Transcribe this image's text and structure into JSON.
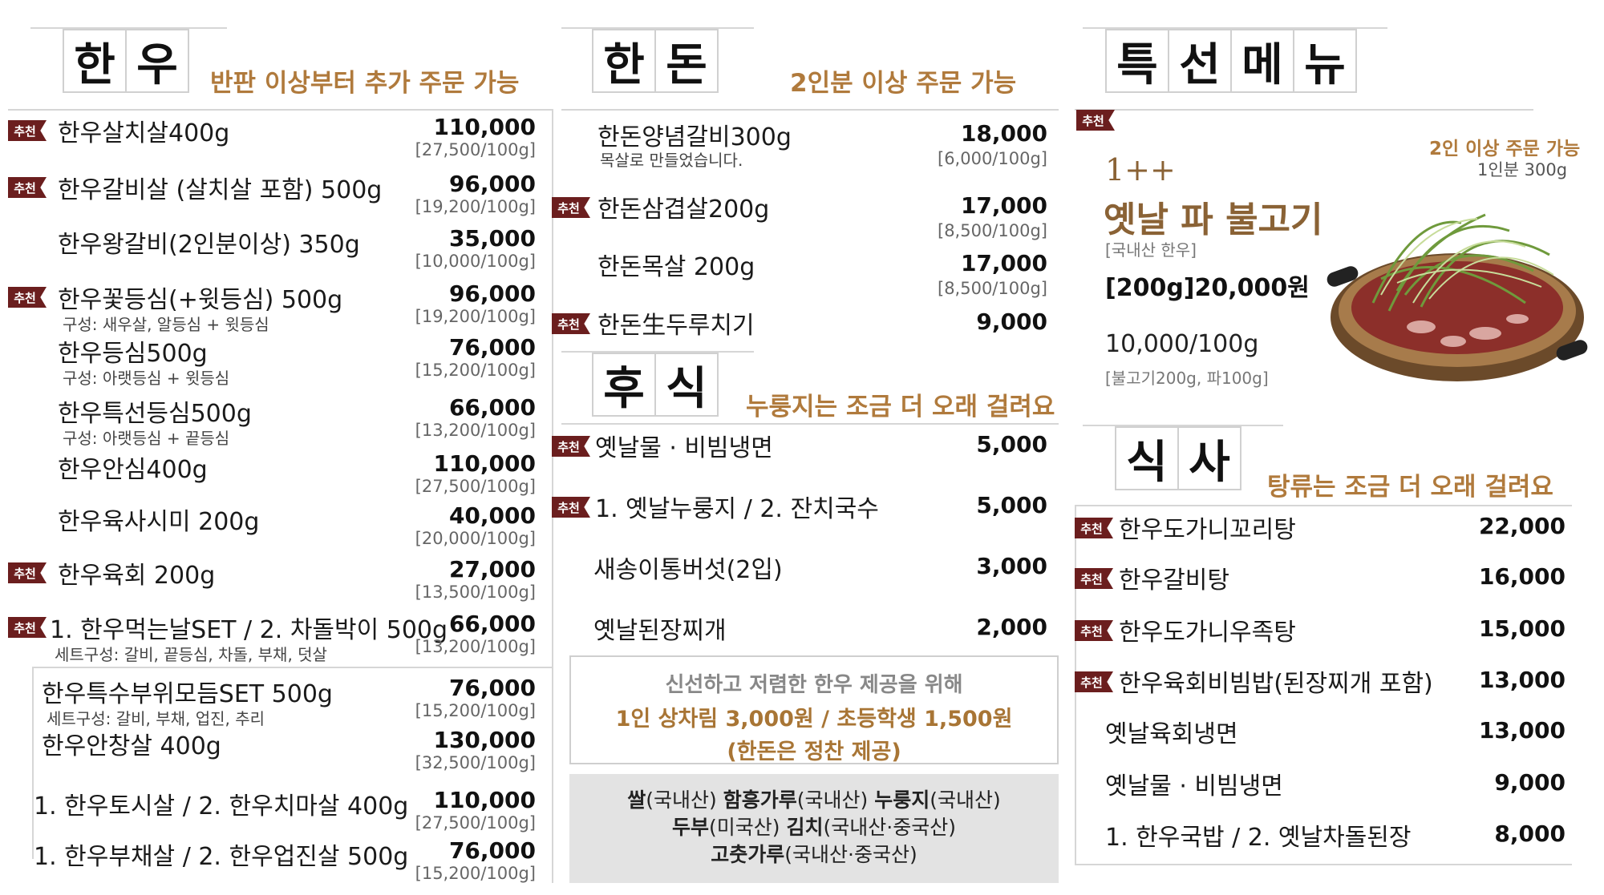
{
  "colors": {
    "accent": "#b07a3c",
    "badge": "#6b1e1e",
    "origin_bg": "#e3e3e3"
  },
  "badge_label": "추천",
  "hanwoo": {
    "title_chars": [
      "한",
      "우"
    ],
    "note": "반판 이상부터 추가 주문 가능",
    "items": [
      {
        "badge": true,
        "name": "한우살치살400g",
        "sub": "",
        "price": "110,000",
        "unit": "[27,500/100g]"
      },
      {
        "badge": true,
        "name": "한우갈비살 (살치살 포함) 500g",
        "sub": "",
        "price": "96,000",
        "unit": "[19,200/100g]"
      },
      {
        "badge": false,
        "name": "한우왕갈비(2인분이상) 350g",
        "sub": "",
        "price": "35,000",
        "unit": "[10,000/100g]"
      },
      {
        "badge": true,
        "name": "한우꽃등심(+윗등심) 500g",
        "sub": "구성: 새우살, 알등심 + 윗등심",
        "price": "96,000",
        "unit": "[19,200/100g]"
      },
      {
        "badge": false,
        "name": "한우등심500g",
        "sub": "구성: 아랫등심 + 윗등심",
        "price": "76,000",
        "unit": "[15,200/100g]"
      },
      {
        "badge": false,
        "name": "한우특선등심500g",
        "sub": "구성: 아랫등심 + 끝등심",
        "price": "66,000",
        "unit": "[13,200/100g]"
      },
      {
        "badge": false,
        "name": "한우안심400g",
        "sub": "",
        "price": "110,000",
        "unit": "[27,500/100g]"
      },
      {
        "badge": false,
        "name": "한우육사시미 200g",
        "sub": "",
        "price": "40,000",
        "unit": "[20,000/100g]"
      },
      {
        "badge": true,
        "name": "한우육회 200g",
        "sub": "",
        "price": "27,000",
        "unit": "[13,500/100g]"
      },
      {
        "badge": true,
        "name": "1. 한우먹는날SET / 2. 차돌박이 500g",
        "sub": "세트구성: 갈비, 끝등심, 차돌, 부채, 덧살",
        "price": "66,000",
        "unit": "[13,200/100g]"
      },
      {
        "badge": false,
        "name": "한우특수부위모듬SET 500g",
        "sub": "세트구성: 갈비, 부채, 업진, 추리",
        "price": "76,000",
        "unit": "[15,200/100g]"
      },
      {
        "badge": false,
        "name": "한우안창살 400g",
        "sub": "",
        "price": "130,000",
        "unit": "[32,500/100g]"
      },
      {
        "badge": false,
        "name": "1. 한우토시살 / 2. 한우치마살 400g",
        "sub": "",
        "price": "110,000",
        "unit": "[27,500/100g]"
      },
      {
        "badge": false,
        "name": "1. 한우부채살 / 2. 한우업진살 500g",
        "sub": "",
        "price": "76,000",
        "unit": "[15,200/100g]"
      }
    ]
  },
  "handon": {
    "title_chars": [
      "한",
      "돈"
    ],
    "note": "2인분 이상 주문 가능",
    "items": [
      {
        "badge": false,
        "name": "한돈양념갈비300g",
        "sub": "목살로 만들었습니다.",
        "price": "18,000",
        "unit": "[6,000/100g]"
      },
      {
        "badge": true,
        "name": "한돈삼겹살200g",
        "sub": "",
        "price": "17,000",
        "unit": "[8,500/100g]"
      },
      {
        "badge": false,
        "name": "한돈목살 200g",
        "sub": "",
        "price": "17,000",
        "unit": "[8,500/100g]"
      },
      {
        "badge": true,
        "name": "한돈生두루치기",
        "sub": "",
        "price": "9,000",
        "unit": ""
      }
    ]
  },
  "husik": {
    "title_chars": [
      "후",
      "식"
    ],
    "note": "누룽지는 조금 더 오래 걸려요",
    "items": [
      {
        "badge": true,
        "name": "옛날물 · 비빔냉면",
        "price": "5,000"
      },
      {
        "badge": true,
        "name": "1. 옛날누룽지 / 2. 잔치국수",
        "price": "5,000"
      },
      {
        "badge": false,
        "name": "새송이통버섯(2입)",
        "price": "3,000"
      },
      {
        "badge": false,
        "name": "옛날된장찌개",
        "price": "2,000"
      }
    ]
  },
  "notice": {
    "line1": "신선하고 저렴한 한우 제공을 위해",
    "line2": "1인 상차림 3,000원 / 초등학생 1,500원",
    "line3": "(한돈은 정찬 제공)"
  },
  "origin": {
    "row1": [
      [
        "쌀",
        "(국내산) "
      ],
      [
        "함흥가루",
        "(국내산) "
      ],
      [
        "누룽지",
        "(국내산)"
      ]
    ],
    "row2": [
      [
        "두부",
        "(미국산) "
      ],
      [
        "김치",
        "(국내산·중국산)"
      ]
    ],
    "row3": [
      [
        "고춧가루",
        "(국내산·중국산)"
      ]
    ]
  },
  "special": {
    "title_chars": [
      "특",
      "선",
      "메",
      "뉴"
    ],
    "min_order": "2인 이상 주문 가능",
    "per_person": "1인분 300g",
    "grade": "1++",
    "name": "옛날 파 불고기",
    "origin": "[국내산 한우]",
    "price": "[200g]20,000원",
    "unit_price": "10,000/100g",
    "composition": "[불고기200g, 파100g]"
  },
  "siksa": {
    "title_chars": [
      "식",
      "사"
    ],
    "note": "탕류는 조금 더 오래 걸려요",
    "items": [
      {
        "badge": true,
        "name": "한우도가니꼬리탕",
        "price": "22,000"
      },
      {
        "badge": true,
        "name": "한우갈비탕",
        "price": "16,000"
      },
      {
        "badge": true,
        "name": "한우도가니우족탕",
        "price": "15,000"
      },
      {
        "badge": true,
        "name": "한우육회비빔밥(된장찌개 포함)",
        "price": "13,000"
      },
      {
        "badge": false,
        "name": "옛날육회냉면",
        "price": "13,000"
      },
      {
        "badge": false,
        "name": "옛날물 · 비빔냉면",
        "price": "9,000"
      },
      {
        "badge": false,
        "name": "1. 한우국밥 / 2. 옛날차돌된장",
        "price": "8,000"
      }
    ]
  }
}
